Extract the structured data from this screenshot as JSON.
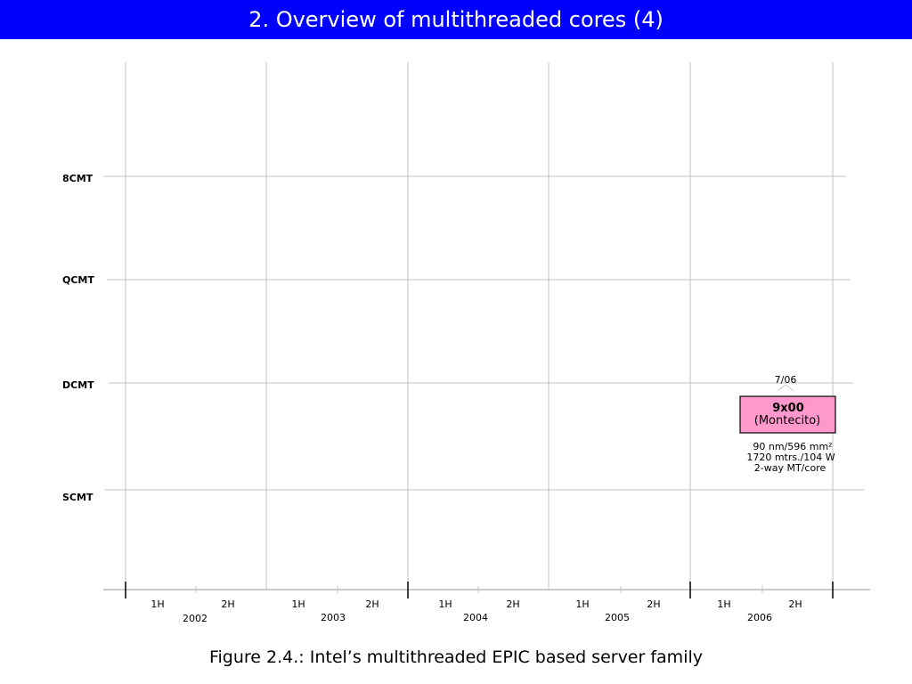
{
  "slide": {
    "title": "2. Overview of multithreaded cores (4)",
    "caption": "Figure 2.4.: Intel’s multithreaded EPIC based server family"
  },
  "timeline": {
    "rows": [
      "8CMT",
      "QCMT",
      "DCMT",
      "SCMT"
    ],
    "years": [
      "2002",
      "2003",
      "2004",
      "2005",
      "2006"
    ],
    "halves": [
      "1H",
      "2H"
    ]
  },
  "chips": [
    {
      "date": "7/06",
      "name": "9x00",
      "codename": "(Montecito)",
      "row": "DCMT",
      "specs": [
        "90 nm/596 mm²",
        "1720 mtrs./104 W",
        "2-way MT/core"
      ],
      "fill_color": "#ff99cc"
    }
  ],
  "colors": {
    "title_bar": "#0000ff",
    "title_text": "#ffffff",
    "grid": "#b0b0b0",
    "axis": "#000000"
  }
}
